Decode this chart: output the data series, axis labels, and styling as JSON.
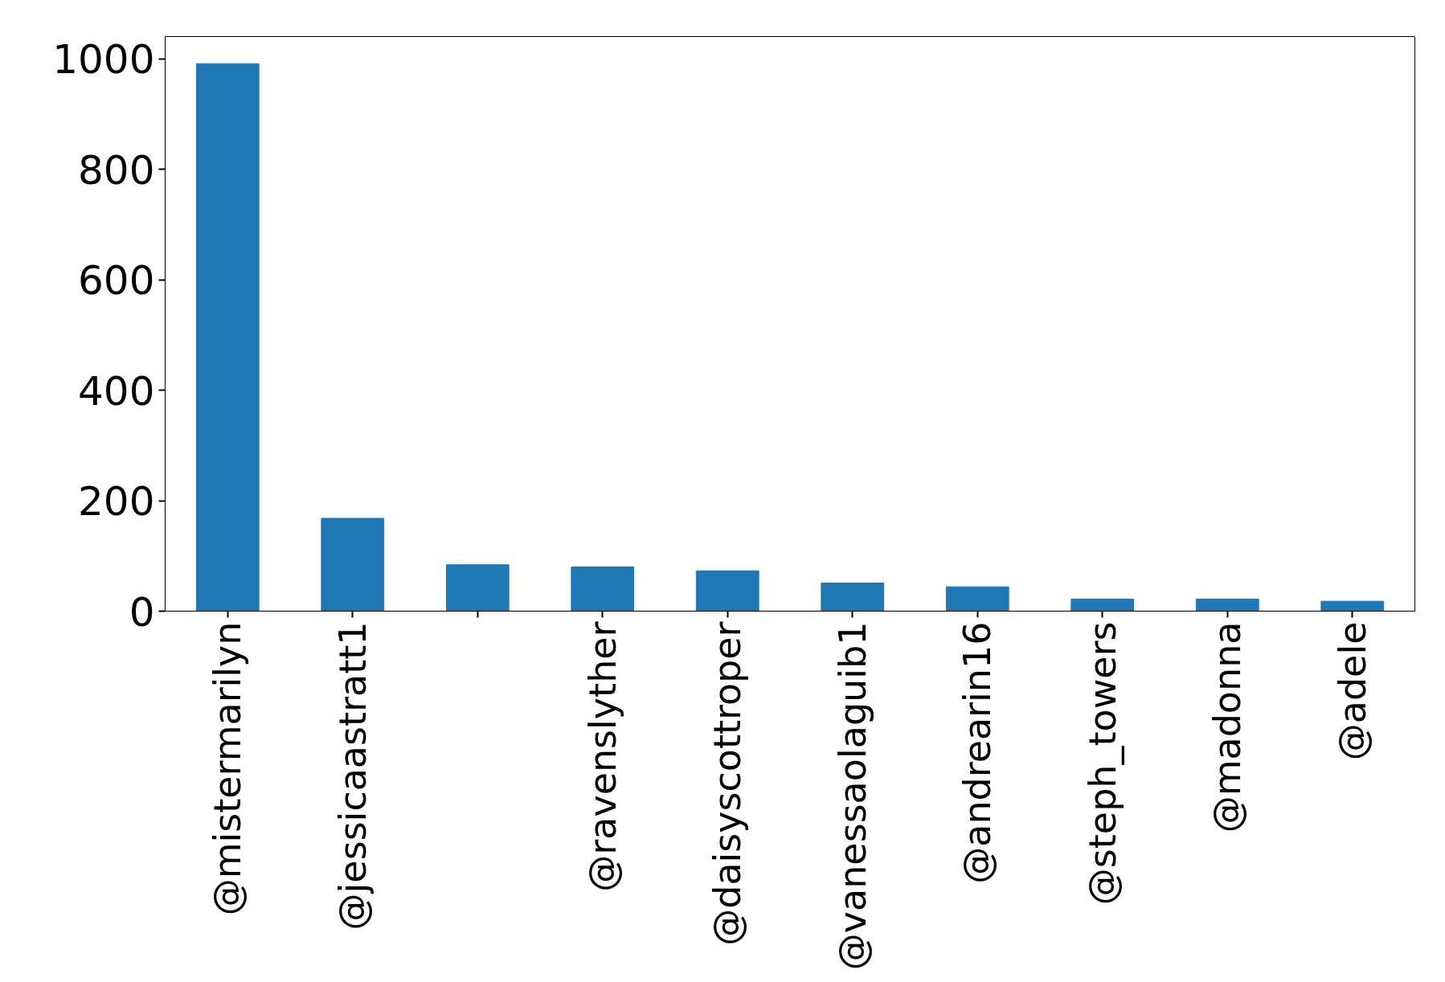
{
  "chart_data": {
    "type": "bar",
    "categories": [
      "@mistermarilyn",
      "@jessicaastratt1",
      null,
      "@ravenslyther",
      "@daisyscottroper",
      "@vanessaolaguib1",
      "@andrearin16",
      "@steph_towers",
      "@madonna",
      "@adele"
    ],
    "values": [
      991,
      168,
      84,
      80,
      73,
      51,
      44,
      22,
      22,
      18
    ],
    "color": "#1f77b4",
    "ylim": [
      0,
      1040
    ],
    "yticks": [
      0,
      200,
      400,
      600,
      800,
      1000
    ],
    "grid": false
  }
}
